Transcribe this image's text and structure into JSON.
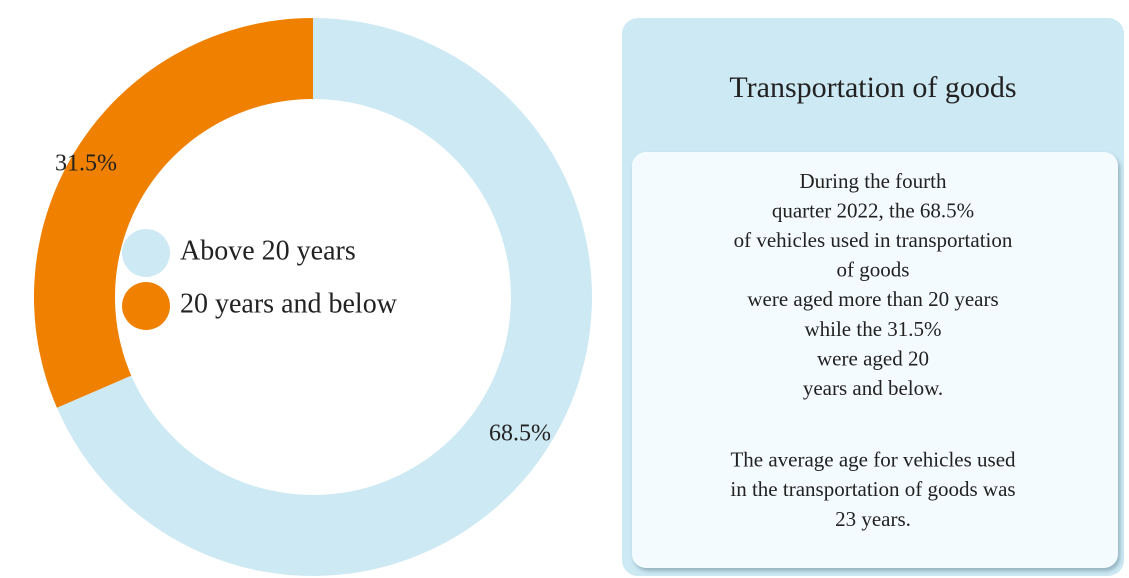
{
  "chart_data": {
    "type": "donut",
    "categories": [
      "Above 20 years",
      "20 years and below"
    ],
    "values": [
      68.5,
      31.5
    ],
    "value_labels": [
      "68.5%",
      "31.5%"
    ],
    "colors": [
      "#cde9f4",
      "#f08000"
    ],
    "legend": "center"
  },
  "panel": {
    "title": "Transportation of goods",
    "paragraphs": [
      {
        "lines": [
          "During the fourth",
          "quarter 2022, the 68.5%",
          "of vehicles used in transportation",
          "of goods",
          "were aged more than 20 years",
          "while the 31.5%",
          "were aged 20",
          "years and below."
        ]
      },
      {
        "lines": [
          "The average age for vehicles used",
          "in the transportation of goods was",
          "23 years."
        ]
      }
    ]
  }
}
